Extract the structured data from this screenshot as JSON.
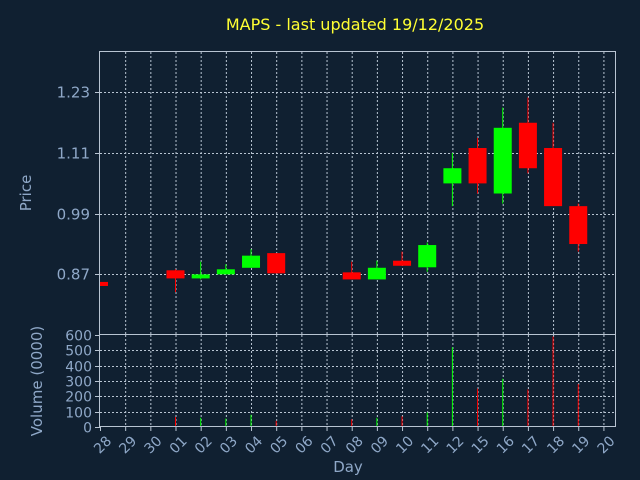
{
  "chart_data": [
    {
      "type": "candlestick",
      "title": "MAPS - last updated 19/12/2025",
      "ylabel": "Price",
      "ylim": [
        0.75,
        1.31
      ],
      "yticks": [
        "0.87",
        "0.99",
        "1.11",
        "1.23"
      ],
      "ytick_values": [
        0.87,
        0.99,
        1.11,
        1.23
      ],
      "x_ticks": [
        "28",
        "29",
        "30",
        "01",
        "02",
        "03",
        "04",
        "05",
        "06",
        "07",
        "08",
        "09",
        "10",
        "11",
        "12",
        "15",
        "16",
        "17",
        "18",
        "19",
        "20"
      ],
      "grid": true,
      "colors": {
        "up": "#00ff00",
        "down": "#ff0000",
        "title": "#ffff33",
        "axis_text": "#8fa8c8",
        "background": "#102031"
      },
      "candles": [
        {
          "day": "28",
          "open": 0.855,
          "close": 0.847,
          "high": 0.855,
          "low": 0.847
        },
        {
          "day": "01",
          "open": 0.878,
          "close": 0.862,
          "high": 0.88,
          "low": 0.835
        },
        {
          "day": "02",
          "open": 0.862,
          "close": 0.87,
          "high": 0.895,
          "low": 0.86
        },
        {
          "day": "03",
          "open": 0.87,
          "close": 0.88,
          "high": 0.89,
          "low": 0.87
        },
        {
          "day": "04",
          "open": 0.883,
          "close": 0.907,
          "high": 0.92,
          "low": 0.883
        },
        {
          "day": "05",
          "open": 0.912,
          "close": 0.872,
          "high": 0.912,
          "low": 0.872
        },
        {
          "day": "08",
          "open": 0.874,
          "close": 0.86,
          "high": 0.895,
          "low": 0.86
        },
        {
          "day": "09",
          "open": 0.86,
          "close": 0.883,
          "high": 0.897,
          "low": 0.86
        },
        {
          "day": "10",
          "open": 0.897,
          "close": 0.887,
          "high": 0.915,
          "low": 0.887
        },
        {
          "day": "11",
          "open": 0.884,
          "close": 0.928,
          "high": 0.933,
          "low": 0.875
        },
        {
          "day": "12",
          "open": 1.05,
          "close": 1.08,
          "high": 1.11,
          "low": 1.005
        },
        {
          "day": "15",
          "open": 1.12,
          "close": 1.05,
          "high": 1.14,
          "low": 1.03
        },
        {
          "day": "16",
          "open": 1.03,
          "close": 1.16,
          "high": 1.2,
          "low": 1.01
        },
        {
          "day": "17",
          "open": 1.17,
          "close": 1.08,
          "high": 1.22,
          "low": 1.07
        },
        {
          "day": "18",
          "open": 1.12,
          "close": 1.005,
          "high": 1.17,
          "low": 1.005
        },
        {
          "day": "19",
          "open": 1.005,
          "close": 0.93,
          "high": 1.01,
          "low": 0.915
        }
      ]
    },
    {
      "type": "bar",
      "ylabel": "Volume (0000)",
      "xlabel": "Day",
      "ylim": [
        0,
        600
      ],
      "yticks": [
        "0",
        "100",
        "200",
        "300",
        "400",
        "500",
        "600"
      ],
      "ytick_values": [
        0,
        100,
        200,
        300,
        400,
        500,
        600
      ],
      "categories": [
        "28",
        "29",
        "30",
        "01",
        "02",
        "03",
        "04",
        "05",
        "06",
        "07",
        "08",
        "09",
        "10",
        "11",
        "12",
        "15",
        "16",
        "17",
        "18",
        "19",
        "20"
      ],
      "grid": true,
      "volumes": [
        {
          "day": "28",
          "value": 0,
          "color": "#ff0000"
        },
        {
          "day": "01",
          "value": 65,
          "color": "#ff0000"
        },
        {
          "day": "02",
          "value": 60,
          "color": "#00ff00"
        },
        {
          "day": "03",
          "value": 55,
          "color": "#00ff00"
        },
        {
          "day": "04",
          "value": 80,
          "color": "#00ff00"
        },
        {
          "day": "05",
          "value": 40,
          "color": "#ff0000"
        },
        {
          "day": "08",
          "value": 50,
          "color": "#ff0000"
        },
        {
          "day": "09",
          "value": 60,
          "color": "#00ff00"
        },
        {
          "day": "10",
          "value": 70,
          "color": "#ff0000"
        },
        {
          "day": "11",
          "value": 95,
          "color": "#00ff00"
        },
        {
          "day": "12",
          "value": 520,
          "color": "#00ff00"
        },
        {
          "day": "15",
          "value": 250,
          "color": "#ff0000"
        },
        {
          "day": "16",
          "value": 315,
          "color": "#00ff00"
        },
        {
          "day": "17",
          "value": 245,
          "color": "#ff0000"
        },
        {
          "day": "18",
          "value": 590,
          "color": "#ff0000"
        },
        {
          "day": "19",
          "value": 280,
          "color": "#ff0000"
        }
      ]
    }
  ]
}
